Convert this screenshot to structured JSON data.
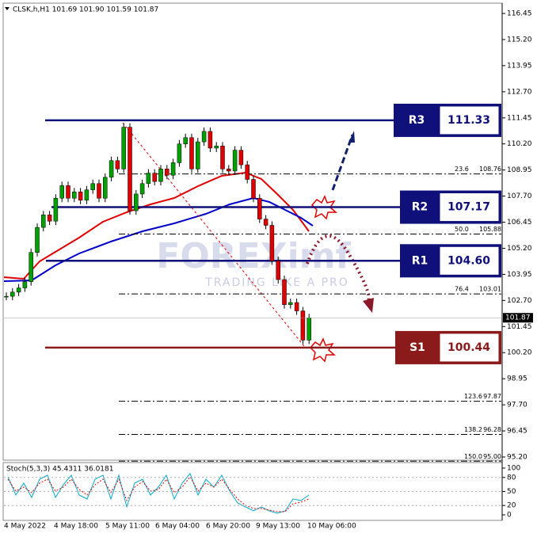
{
  "chart_data": {
    "type": "candlestick",
    "title": "CLSK,h,H1  101.69 101.90 101.59 101.87",
    "closes": [
      102.9,
      103.1,
      103.3,
      103.6,
      105.0,
      106.2,
      106.8,
      106.5,
      107.6,
      108.2,
      107.6,
      107.9,
      107.5,
      108.0,
      108.3,
      107.6,
      108.6,
      109.4,
      109.0,
      111.0,
      107.0,
      107.8,
      108.3,
      108.8,
      108.4,
      109.0,
      108.7,
      109.3,
      110.2,
      110.5,
      109.0,
      110.3,
      110.8,
      110.0,
      110.1,
      109.0,
      108.9,
      109.9,
      109.2,
      108.5,
      107.6,
      106.6,
      106.3,
      104.6,
      103.7,
      102.5,
      102.6,
      102.2,
      100.8,
      101.87
    ],
    "up_color": "#00a000",
    "down_color": "#e00000",
    "ylim": [
      95.2,
      116.45
    ],
    "yticks": [
      {
        "value": 116.45,
        "label": "116.45"
      },
      {
        "value": 115.2,
        "label": "115.20"
      },
      {
        "value": 113.95,
        "label": "113.95"
      },
      {
        "value": 112.7,
        "label": "112.70"
      },
      {
        "value": 111.45,
        "label": "111.45"
      },
      {
        "value": 110.2,
        "label": "110.20"
      },
      {
        "value": 108.95,
        "label": "108.95"
      },
      {
        "value": 107.7,
        "label": "107.70"
      },
      {
        "value": 106.45,
        "label": "106.45"
      },
      {
        "value": 105.2,
        "label": "105.20"
      },
      {
        "value": 103.95,
        "label": "103.95"
      },
      {
        "value": 102.7,
        "label": "102.70"
      },
      {
        "value": 101.45,
        "label": "101.45"
      },
      {
        "value": 100.2,
        "label": "100.20"
      },
      {
        "value": 98.95,
        "label": "98.95"
      },
      {
        "value": 97.7,
        "label": "97.70"
      },
      {
        "value": 96.45,
        "label": "96.45"
      },
      {
        "value": 95.2,
        "label": "95.20"
      }
    ],
    "current_price": 101.87,
    "x_labels": [
      "4 May 2022",
      "4 May 18:00",
      "5 May 11:00",
      "6 May 04:00",
      "6 May 20:00",
      "9 May 13:00",
      "10 May 06:00"
    ],
    "levels": {
      "names": [
        "R3",
        "R2",
        "R1",
        "S1"
      ],
      "values": [
        111.33,
        107.17,
        104.6,
        100.44
      ],
      "value_labels": [
        "111.33",
        "107.17",
        "104.60",
        "100.44"
      ]
    },
    "fib": [
      {
        "ratio": "23.6",
        "price": {
          "value": 108.76,
          "label": "108.76"
        }
      },
      {
        "ratio": "50.0",
        "price": {
          "value": 105.88,
          "label": "105.88"
        }
      },
      {
        "ratio": "76.4",
        "price": {
          "value": 103.01,
          "label": "103.01"
        }
      },
      {
        "ratio": "123.6",
        "price": {
          "value": 97.87,
          "label": "97.87"
        }
      },
      {
        "ratio": "138.2",
        "price": {
          "value": 96.28,
          "label": "96.28"
        }
      },
      {
        "ratio": "150.0",
        "price": {
          "value": 95.0,
          "label": "95.00"
        }
      }
    ],
    "stoch_title": "Stoch(5,3,3) 45.4311 36.0181",
    "stoch_ylim": [
      0,
      100
    ],
    "stoch_yticks": [
      100,
      80,
      50,
      20,
      0
    ],
    "watermark": "FOREXimf",
    "watermark_sub": "TRADING LIKE A PRO"
  }
}
